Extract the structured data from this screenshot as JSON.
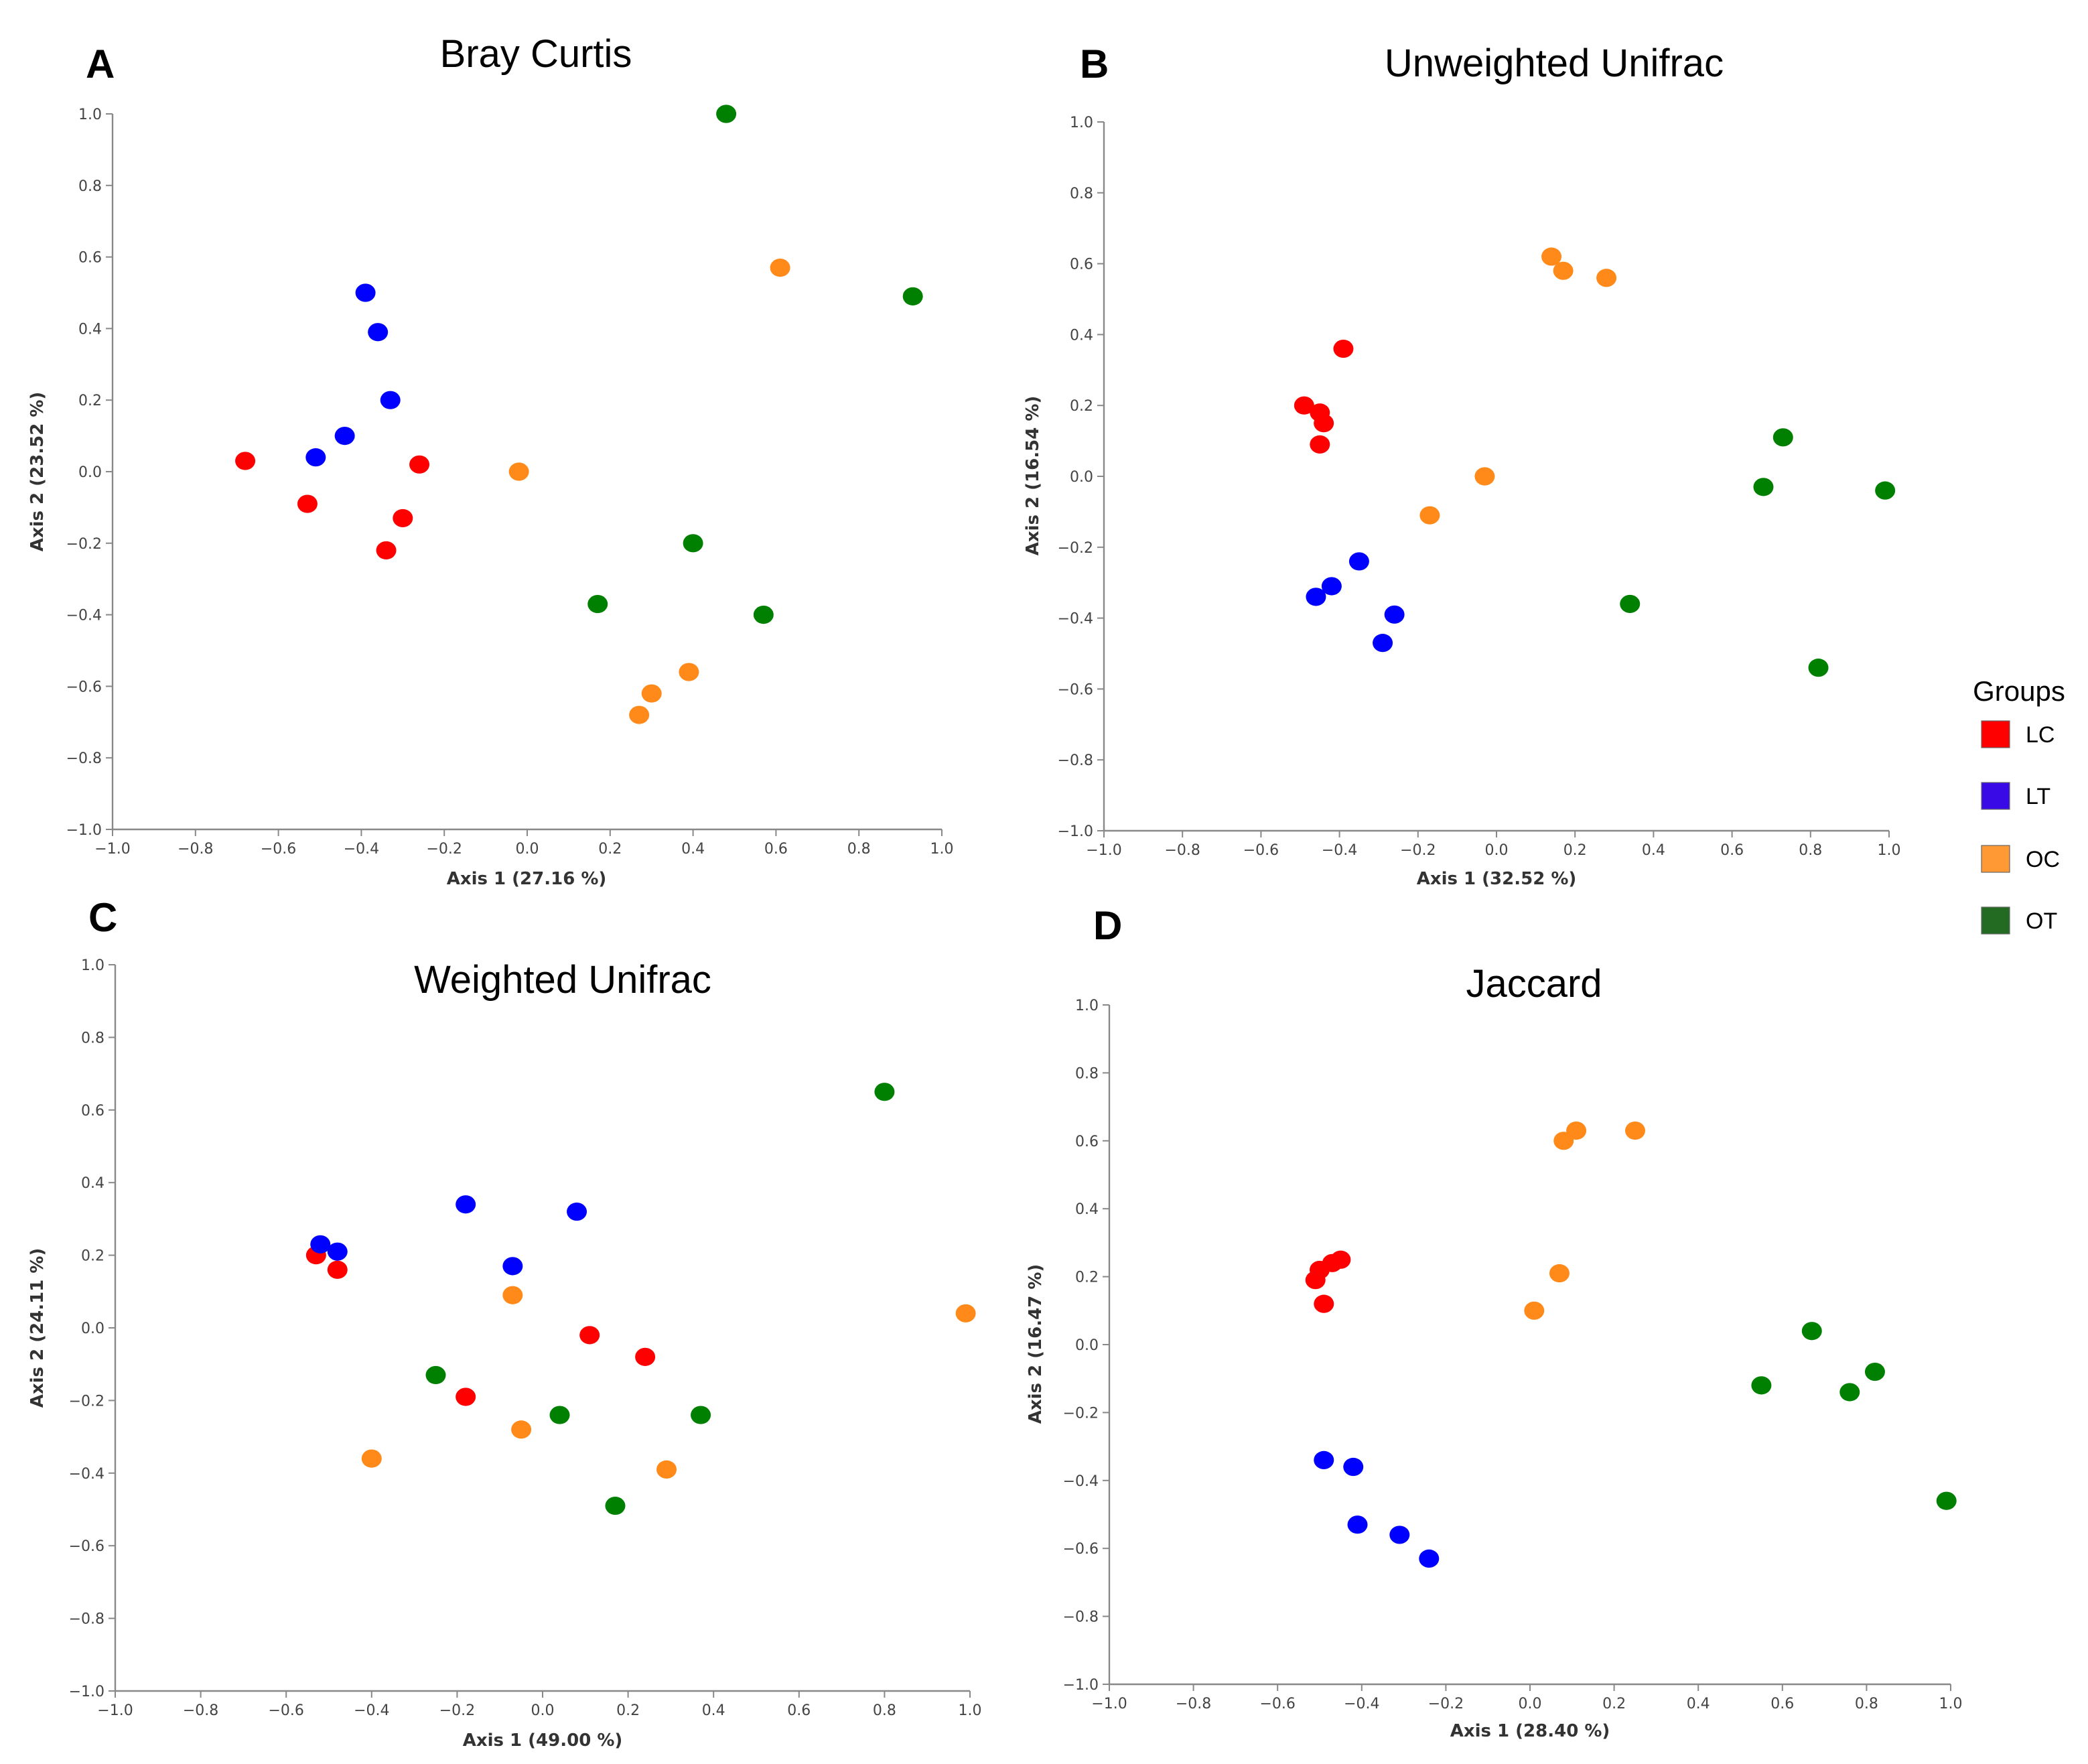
{
  "legend": {
    "title": "Groups",
    "items": [
      {
        "label": "LC",
        "color": "#ff0000"
      },
      {
        "label": "LT",
        "color": "#3a0ae6"
      },
      {
        "label": "OC",
        "color": "#ff9933"
      },
      {
        "label": "OT",
        "color": "#236b23"
      }
    ]
  },
  "point_colors": {
    "LC": "#ff0000",
    "LT": "#0000ff",
    "OC": "#ff8a1a",
    "OT": "#008000"
  },
  "chart_data": [
    {
      "type": "scatter",
      "letter": "A",
      "title": "Bray Curtis",
      "xlabel": "Axis 1 (27.16 %)",
      "ylabel": "Axis 2 (23.52 %)",
      "xlim": [
        -1.0,
        1.0
      ],
      "ylim": [
        -1.0,
        1.0
      ],
      "ticks": [
        "−1.0",
        "−0.8",
        "−0.6",
        "−0.4",
        "−0.2",
        "0.0",
        "0.2",
        "0.4",
        "0.6",
        "0.8",
        "1.0"
      ],
      "series": [
        {
          "name": "LC",
          "points": [
            [
              -0.68,
              0.03
            ],
            [
              -0.53,
              -0.09
            ],
            [
              -0.26,
              0.02
            ],
            [
              -0.3,
              -0.13
            ],
            [
              -0.34,
              -0.22
            ]
          ]
        },
        {
          "name": "LT",
          "points": [
            [
              -0.39,
              0.5
            ],
            [
              -0.36,
              0.39
            ],
            [
              -0.33,
              0.2
            ],
            [
              -0.44,
              0.1
            ],
            [
              -0.51,
              0.04
            ]
          ]
        },
        {
          "name": "OC",
          "points": [
            [
              -0.02,
              0.0
            ],
            [
              0.61,
              0.57
            ],
            [
              0.39,
              -0.56
            ],
            [
              0.3,
              -0.62
            ],
            [
              0.27,
              -0.68
            ]
          ]
        },
        {
          "name": "OT",
          "points": [
            [
              0.48,
              1.0
            ],
            [
              0.93,
              0.49
            ],
            [
              0.4,
              -0.2
            ],
            [
              0.17,
              -0.37
            ],
            [
              0.57,
              -0.4
            ]
          ]
        }
      ]
    },
    {
      "type": "scatter",
      "letter": "B",
      "title": "Unweighted Unifrac",
      "xlabel": "Axis 1 (32.52 %)",
      "ylabel": "Axis 2 (16.54 %)",
      "xlim": [
        -1.0,
        1.0
      ],
      "ylim": [
        -1.0,
        1.0
      ],
      "ticks": [
        "−1.0",
        "−0.8",
        "−0.6",
        "−0.4",
        "−0.2",
        "0.0",
        "0.2",
        "0.4",
        "0.6",
        "0.8",
        "1.0"
      ],
      "series": [
        {
          "name": "LC",
          "points": [
            [
              -0.39,
              0.36
            ],
            [
              -0.49,
              0.2
            ],
            [
              -0.45,
              0.18
            ],
            [
              -0.44,
              0.15
            ],
            [
              -0.45,
              0.09
            ]
          ]
        },
        {
          "name": "LT",
          "points": [
            [
              -0.35,
              -0.24
            ],
            [
              -0.42,
              -0.31
            ],
            [
              -0.46,
              -0.34
            ],
            [
              -0.26,
              -0.39
            ],
            [
              -0.29,
              -0.47
            ]
          ]
        },
        {
          "name": "OC",
          "points": [
            [
              0.14,
              0.62
            ],
            [
              0.17,
              0.58
            ],
            [
              0.28,
              0.56
            ],
            [
              -0.03,
              0.0
            ],
            [
              -0.17,
              -0.11
            ]
          ]
        },
        {
          "name": "OT",
          "points": [
            [
              0.73,
              0.11
            ],
            [
              0.68,
              -0.03
            ],
            [
              0.99,
              -0.04
            ],
            [
              0.34,
              -0.36
            ],
            [
              0.82,
              -0.54
            ]
          ]
        }
      ]
    },
    {
      "type": "scatter",
      "letter": "C",
      "title": "Weighted Unifrac",
      "xlabel": "Axis 1 (49.00 %)",
      "ylabel": "Axis 2 (24.11 %)",
      "xlim": [
        -1.0,
        1.0
      ],
      "ylim": [
        -1.0,
        1.0
      ],
      "ticks": [
        "−1.0",
        "−0.8",
        "−0.6",
        "−0.4",
        "−0.2",
        "0.0",
        "0.2",
        "0.4",
        "0.6",
        "0.8",
        "1.0"
      ],
      "series": [
        {
          "name": "LC",
          "points": [
            [
              -0.53,
              0.2
            ],
            [
              -0.48,
              0.16
            ],
            [
              0.11,
              -0.02
            ],
            [
              0.24,
              -0.08
            ],
            [
              -0.18,
              -0.19
            ]
          ]
        },
        {
          "name": "LT",
          "points": [
            [
              -0.52,
              0.23
            ],
            [
              -0.48,
              0.21
            ],
            [
              -0.18,
              0.34
            ],
            [
              0.08,
              0.32
            ],
            [
              -0.07,
              0.17
            ]
          ]
        },
        {
          "name": "OC",
          "points": [
            [
              -0.07,
              0.09
            ],
            [
              0.99,
              0.04
            ],
            [
              -0.4,
              -0.36
            ],
            [
              -0.05,
              -0.28
            ],
            [
              0.29,
              -0.39
            ]
          ]
        },
        {
          "name": "OT",
          "points": [
            [
              0.8,
              0.65
            ],
            [
              -0.25,
              -0.13
            ],
            [
              0.04,
              -0.24
            ],
            [
              0.37,
              -0.24
            ],
            [
              0.17,
              -0.49
            ]
          ]
        }
      ]
    },
    {
      "type": "scatter",
      "letter": "D",
      "title": "Jaccard",
      "xlabel": "Axis 1 (28.40 %)",
      "ylabel": "Axis 2 (16.47 %)",
      "xlim": [
        -1.0,
        1.0
      ],
      "ylim": [
        -1.0,
        1.0
      ],
      "ticks": [
        "−1.0",
        "−0.8",
        "−0.6",
        "−0.4",
        "−0.2",
        "0.0",
        "0.2",
        "0.4",
        "0.6",
        "0.8",
        "1.0"
      ],
      "series": [
        {
          "name": "LC",
          "points": [
            [
              -0.51,
              0.19
            ],
            [
              -0.5,
              0.22
            ],
            [
              -0.47,
              0.24
            ],
            [
              -0.45,
              0.25
            ],
            [
              -0.49,
              0.12
            ]
          ]
        },
        {
          "name": "LT",
          "points": [
            [
              -0.49,
              -0.34
            ],
            [
              -0.42,
              -0.36
            ],
            [
              -0.41,
              -0.53
            ],
            [
              -0.31,
              -0.56
            ],
            [
              -0.24,
              -0.63
            ]
          ]
        },
        {
          "name": "OC",
          "points": [
            [
              0.08,
              0.6
            ],
            [
              0.11,
              0.63
            ],
            [
              0.25,
              0.63
            ],
            [
              0.07,
              0.21
            ],
            [
              0.01,
              0.1
            ]
          ]
        },
        {
          "name": "OT",
          "points": [
            [
              0.67,
              0.04
            ],
            [
              0.82,
              -0.08
            ],
            [
              0.55,
              -0.12
            ],
            [
              0.76,
              -0.14
            ],
            [
              0.99,
              -0.46
            ]
          ]
        }
      ]
    }
  ]
}
